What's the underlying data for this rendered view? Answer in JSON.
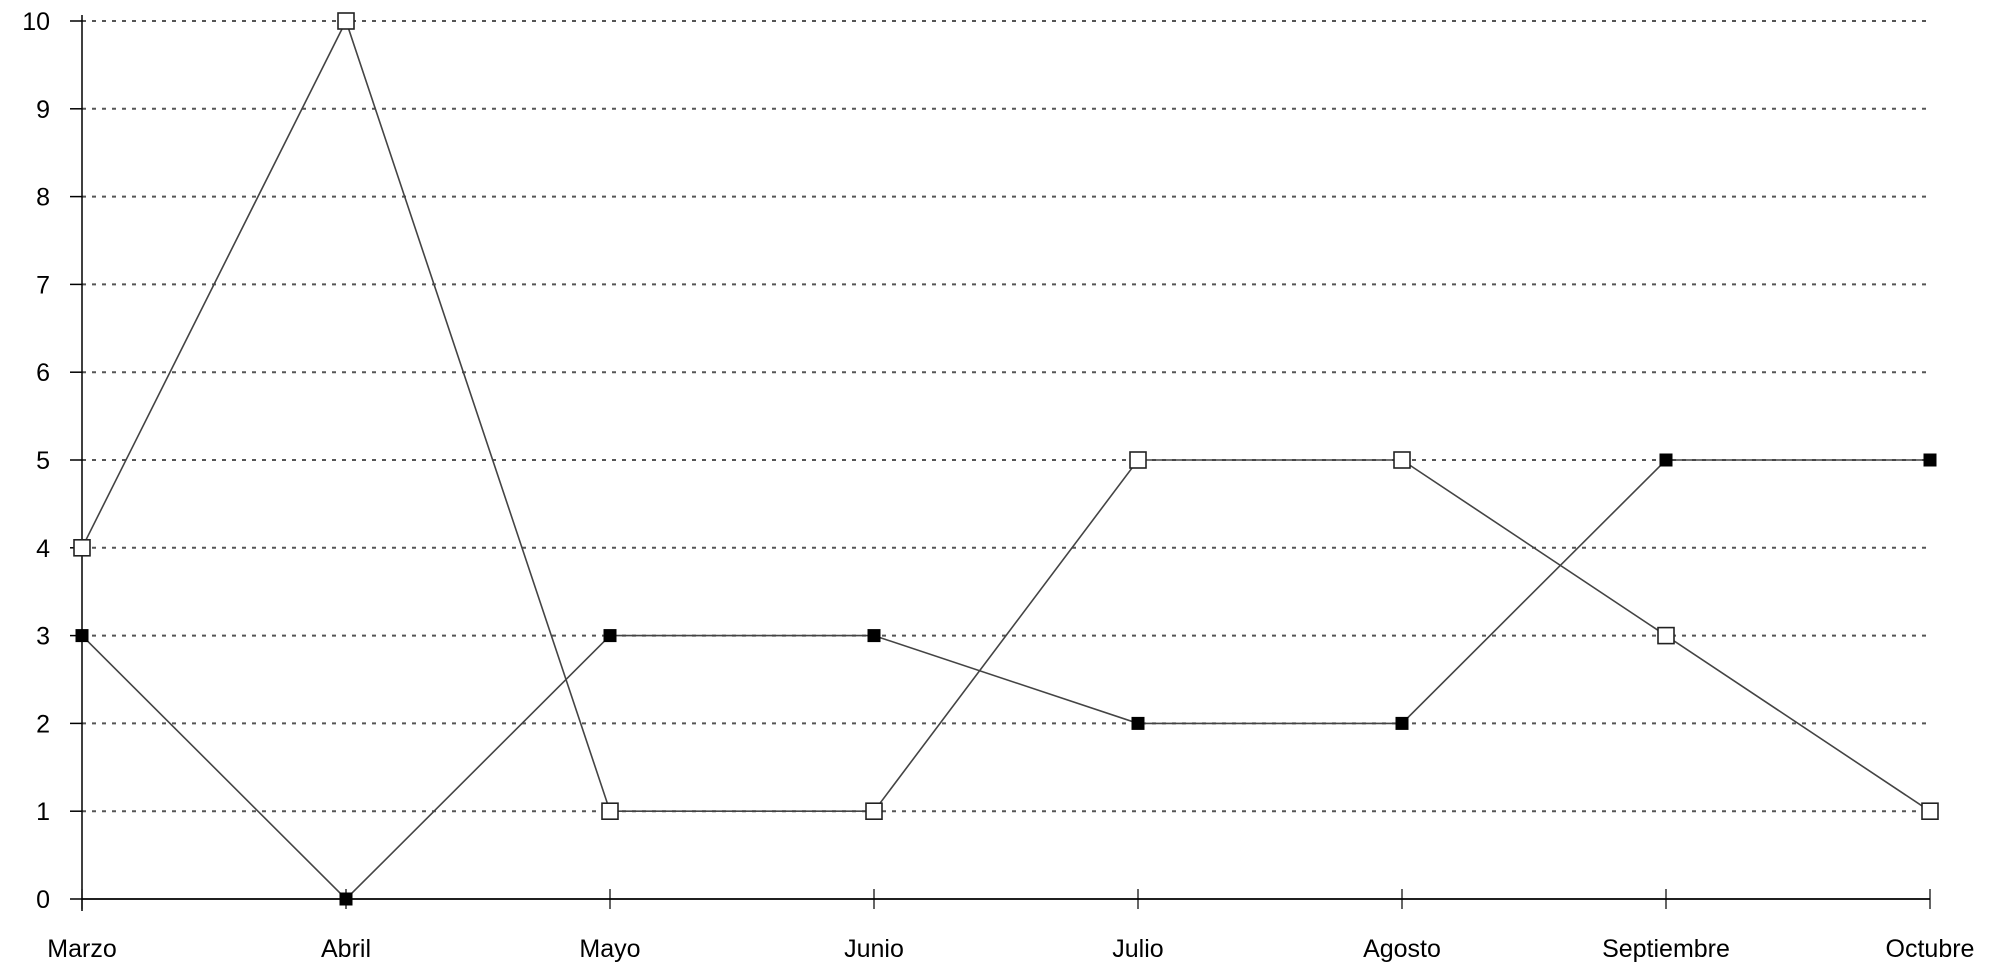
{
  "chart_data": {
    "type": "line",
    "title": "",
    "xlabel": "",
    "ylabel": "",
    "categories": [
      "Marzo",
      "Abril",
      "Mayo",
      "Junio",
      "Julio",
      "Agosto",
      "Septiembre",
      "Octubre"
    ],
    "ylim": [
      0,
      10
    ],
    "yticks": [
      "0",
      "1",
      "2",
      "3",
      "4",
      "5",
      "6",
      "7",
      "8",
      "9",
      "10"
    ],
    "grid": "horizontal-dotted",
    "legend": "none",
    "series": [
      {
        "marker": "hollow-square",
        "color": "#222222",
        "values": [
          4,
          10,
          1,
          1,
          5,
          5,
          3,
          1
        ]
      },
      {
        "marker": "filled-square",
        "color": "#000000",
        "values": [
          3,
          0,
          3,
          3,
          2,
          2,
          5,
          5
        ]
      }
    ]
  }
}
